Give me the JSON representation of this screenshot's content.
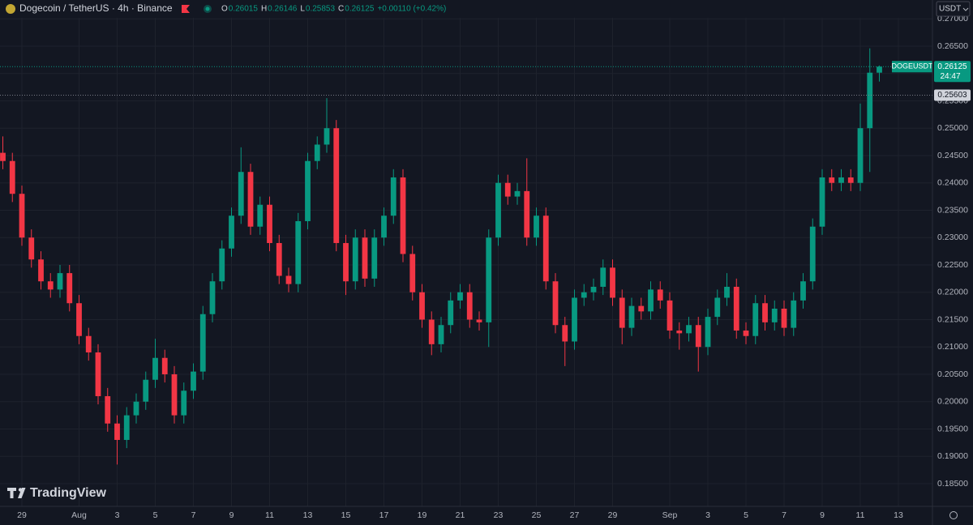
{
  "chart_data": {
    "type": "candlestick",
    "title": "Dogecoin / TetherUS · 4h · Binance",
    "change_label": "+0.00110 (+0.42%)",
    "ohlc_letters": [
      "O",
      "H",
      "L",
      "C"
    ],
    "currency": "USDT",
    "brand": "TradingView",
    "up_color": "#089981",
    "down_color": "#f23645",
    "grid": true,
    "symbol": "DOGEUSDT",
    "countdown": "24:47",
    "price_line": 0.25603,
    "xlim": [
      -1.149,
      47.787
    ],
    "ylim": [
      0.18085,
      0.27344
    ],
    "xticks": [
      {
        "value": 0,
        "label": "29"
      },
      {
        "value": 3,
        "label": "Aug"
      },
      {
        "value": 5,
        "label": "3"
      },
      {
        "value": 7,
        "label": "5"
      },
      {
        "value": 9,
        "label": "7"
      },
      {
        "value": 11,
        "label": "9"
      },
      {
        "value": 13,
        "label": "11"
      },
      {
        "value": 15,
        "label": "13"
      },
      {
        "value": 17,
        "label": "15"
      },
      {
        "value": 19,
        "label": "17"
      },
      {
        "value": 21,
        "label": "19"
      },
      {
        "value": 23,
        "label": "21"
      },
      {
        "value": 25,
        "label": "23"
      },
      {
        "value": 27,
        "label": "25"
      },
      {
        "value": 29,
        "label": "27"
      },
      {
        "value": 31,
        "label": "29"
      },
      {
        "value": 34,
        "label": "Sep"
      },
      {
        "value": 36,
        "label": "3"
      },
      {
        "value": 38,
        "label": "5"
      },
      {
        "value": 40,
        "label": "7"
      },
      {
        "value": 42,
        "label": "9"
      },
      {
        "value": 44,
        "label": "11"
      },
      {
        "value": 46,
        "label": "13"
      }
    ],
    "yticks": [
      {
        "value": 0.185,
        "label": "0.18500"
      },
      {
        "value": 0.19,
        "label": "0.19000"
      },
      {
        "value": 0.195,
        "label": "0.19500"
      },
      {
        "value": 0.2,
        "label": "0.20000"
      },
      {
        "value": 0.205,
        "label": "0.20500"
      },
      {
        "value": 0.21,
        "label": "0.21000"
      },
      {
        "value": 0.215,
        "label": "0.21500"
      },
      {
        "value": 0.22,
        "label": "0.22000"
      },
      {
        "value": 0.225,
        "label": "0.22500"
      },
      {
        "value": 0.23,
        "label": "0.23000"
      },
      {
        "value": 0.235,
        "label": "0.23500"
      },
      {
        "value": 0.24,
        "label": "0.24000"
      },
      {
        "value": 0.245,
        "label": "0.24500"
      },
      {
        "value": 0.25,
        "label": "0.25000"
      },
      {
        "value": 0.255,
        "label": "0.25500"
      },
      {
        "value": 0.26,
        "label": "0.26000"
      },
      {
        "value": 0.265,
        "label": "0.26500"
      },
      {
        "value": 0.27,
        "label": "0.27000"
      }
    ],
    "candles": {
      "x": [
        -1,
        -0.5,
        0,
        0.5,
        1,
        1.5,
        2,
        2.5,
        3,
        3.5,
        4,
        4.5,
        5,
        5.5,
        6,
        6.5,
        7,
        7.5,
        8,
        8.5,
        9,
        9.5,
        10,
        10.5,
        11,
        11.5,
        12,
        12.5,
        13,
        13.5,
        14,
        14.5,
        15,
        15.5,
        16,
        16.5,
        17,
        17.5,
        18,
        18.5,
        19,
        19.5,
        20,
        20.5,
        21,
        21.5,
        22,
        22.5,
        23,
        23.5,
        24,
        24.5,
        25,
        25.5,
        26,
        26.5,
        27,
        27.5,
        28,
        28.5,
        29,
        29.5,
        30,
        30.5,
        31,
        31.5,
        32,
        32.5,
        33,
        33.5,
        34,
        34.5,
        35,
        35.5,
        36,
        36.5,
        37,
        37.5,
        38,
        38.5,
        39,
        39.5,
        40,
        40.5,
        41,
        41.5,
        42,
        42.5,
        43,
        43.5,
        44,
        44.5,
        45
      ],
      "open": [
        0.2455,
        0.244,
        0.238,
        0.23,
        0.226,
        0.222,
        0.2205,
        0.2235,
        0.218,
        0.212,
        0.209,
        0.201,
        0.196,
        0.193,
        0.1975,
        0.2,
        0.204,
        0.208,
        0.205,
        0.1975,
        0.202,
        0.2055,
        0.216,
        0.222,
        0.228,
        0.234,
        0.242,
        0.232,
        0.236,
        0.229,
        0.223,
        0.2215,
        0.233,
        0.244,
        0.247,
        0.25,
        0.229,
        0.222,
        0.23,
        0.2225,
        0.23,
        0.234,
        0.241,
        0.227,
        0.22,
        0.215,
        0.2105,
        0.214,
        0.2185,
        0.22,
        0.215,
        0.2145,
        0.23,
        0.24,
        0.2375,
        0.2385,
        0.23,
        0.234,
        0.222,
        0.214,
        0.211,
        0.219,
        0.22,
        0.221,
        0.2245,
        0.219,
        0.2135,
        0.2175,
        0.2165,
        0.2205,
        0.2185,
        0.213,
        0.2125,
        0.214,
        0.21,
        0.2155,
        0.219,
        0.221,
        0.213,
        0.212,
        0.218,
        0.2145,
        0.217,
        0.2135,
        0.2185,
        0.222,
        0.232,
        0.241,
        0.24,
        0.241,
        0.24,
        0.25,
        0.26015
      ],
      "high": [
        0.2485,
        0.2455,
        0.2395,
        0.2315,
        0.2275,
        0.2235,
        0.225,
        0.225,
        0.2195,
        0.2135,
        0.2105,
        0.2025,
        0.1975,
        0.199,
        0.2015,
        0.2055,
        0.2115,
        0.2095,
        0.2065,
        0.2035,
        0.207,
        0.2175,
        0.2235,
        0.2295,
        0.2355,
        0.2465,
        0.2435,
        0.2375,
        0.2375,
        0.2305,
        0.2245,
        0.2345,
        0.2455,
        0.2485,
        0.2555,
        0.2515,
        0.2305,
        0.2315,
        0.2315,
        0.2315,
        0.2355,
        0.2425,
        0.2425,
        0.2285,
        0.2215,
        0.2165,
        0.2155,
        0.22,
        0.2215,
        0.2215,
        0.2165,
        0.2315,
        0.2415,
        0.2415,
        0.24,
        0.2445,
        0.2355,
        0.2355,
        0.2235,
        0.2155,
        0.2205,
        0.2215,
        0.2225,
        0.226,
        0.226,
        0.2205,
        0.219,
        0.219,
        0.222,
        0.222,
        0.22,
        0.2145,
        0.2155,
        0.2155,
        0.217,
        0.2205,
        0.2235,
        0.2225,
        0.2145,
        0.2195,
        0.2195,
        0.2185,
        0.2185,
        0.22,
        0.2235,
        0.2335,
        0.2425,
        0.2425,
        0.2425,
        0.2425,
        0.2545,
        0.2646,
        0.26146
      ],
      "low": [
        0.2425,
        0.2365,
        0.2285,
        0.2245,
        0.2205,
        0.219,
        0.219,
        0.2165,
        0.2105,
        0.2075,
        0.1995,
        0.1945,
        0.1885,
        0.1915,
        0.196,
        0.1985,
        0.2025,
        0.2035,
        0.196,
        0.196,
        0.2005,
        0.204,
        0.2145,
        0.2205,
        0.2265,
        0.2325,
        0.2305,
        0.2305,
        0.2275,
        0.2215,
        0.22,
        0.22,
        0.2315,
        0.2425,
        0.2455,
        0.2275,
        0.2195,
        0.2205,
        0.221,
        0.221,
        0.2285,
        0.2325,
        0.2255,
        0.2185,
        0.2135,
        0.2085,
        0.209,
        0.2125,
        0.217,
        0.2135,
        0.213,
        0.21,
        0.2285,
        0.236,
        0.236,
        0.2285,
        0.2285,
        0.2205,
        0.2125,
        0.2065,
        0.2095,
        0.2175,
        0.2185,
        0.2195,
        0.2175,
        0.2105,
        0.212,
        0.215,
        0.215,
        0.217,
        0.2115,
        0.2095,
        0.211,
        0.2055,
        0.2085,
        0.214,
        0.2175,
        0.2115,
        0.2105,
        0.2105,
        0.213,
        0.213,
        0.212,
        0.212,
        0.217,
        0.2205,
        0.2305,
        0.2385,
        0.2385,
        0.2385,
        0.2385,
        0.242,
        0.25853
      ],
      "close": [
        0.244,
        0.238,
        0.23,
        0.226,
        0.222,
        0.2205,
        0.2235,
        0.218,
        0.212,
        0.209,
        0.201,
        0.196,
        0.193,
        0.1975,
        0.2,
        0.204,
        0.208,
        0.205,
        0.1975,
        0.202,
        0.2055,
        0.216,
        0.222,
        0.228,
        0.234,
        0.242,
        0.232,
        0.236,
        0.229,
        0.223,
        0.2215,
        0.233,
        0.244,
        0.247,
        0.25,
        0.229,
        0.222,
        0.23,
        0.2225,
        0.23,
        0.234,
        0.241,
        0.227,
        0.22,
        0.215,
        0.2105,
        0.214,
        0.2185,
        0.22,
        0.215,
        0.2145,
        0.23,
        0.24,
        0.2375,
        0.2385,
        0.23,
        0.234,
        0.222,
        0.214,
        0.211,
        0.219,
        0.22,
        0.221,
        0.2245,
        0.219,
        0.2135,
        0.2175,
        0.2165,
        0.2205,
        0.2185,
        0.213,
        0.2125,
        0.214,
        0.21,
        0.2155,
        0.219,
        0.221,
        0.213,
        0.212,
        0.218,
        0.2145,
        0.217,
        0.2135,
        0.2185,
        0.222,
        0.232,
        0.241,
        0.24,
        0.241,
        0.24,
        0.25,
        0.26015,
        0.26125
      ]
    }
  }
}
